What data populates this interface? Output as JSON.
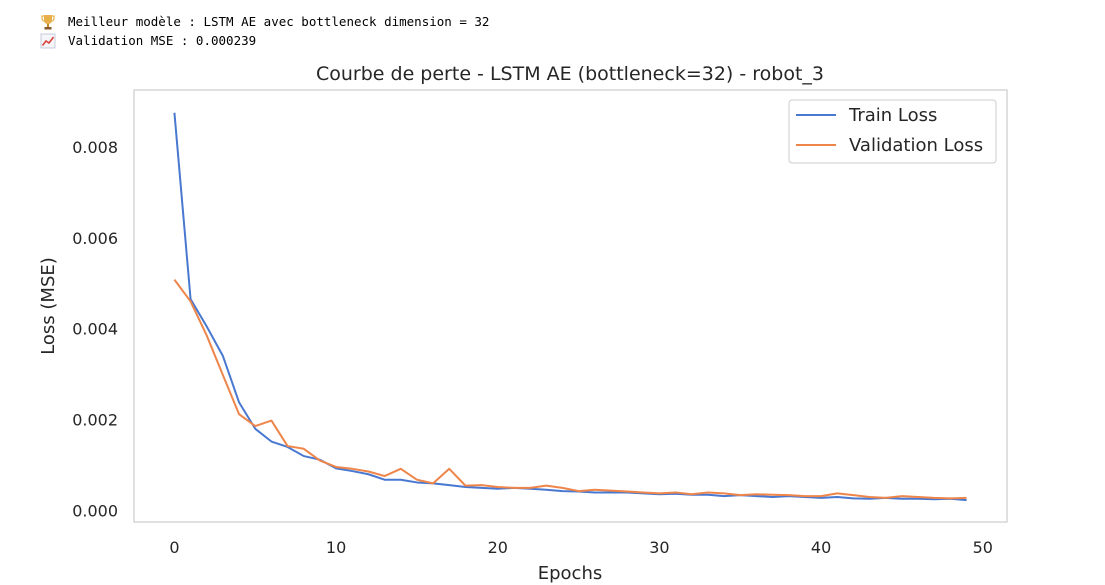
{
  "log": {
    "line1_icon": "trophy-icon",
    "line1_text": "Meilleur modèle : LSTM AE avec bottleneck dimension = 32",
    "line2_icon": "chart-increasing-icon",
    "line2_text": "Validation MSE : 0.000239"
  },
  "chart_data": {
    "type": "line",
    "title": "Courbe de perte - LSTM AE (bottleneck=32) - robot_3",
    "xlabel": "Epochs",
    "ylabel": "Loss (MSE)",
    "xlim": [
      -2.5,
      51.5
    ],
    "ylim": [
      -0.00025,
      0.00925
    ],
    "xticks": [
      0,
      10,
      20,
      30,
      40,
      50
    ],
    "xtick_labels": [
      "0",
      "10",
      "20",
      "30",
      "40",
      "50"
    ],
    "yticks": [
      0.0,
      0.002,
      0.004,
      0.006,
      0.008
    ],
    "ytick_labels": [
      "0.000",
      "0.002",
      "0.004",
      "0.006",
      "0.008"
    ],
    "grid": false,
    "legend_position": "top-right",
    "x": [
      0,
      1,
      2,
      3,
      4,
      5,
      6,
      7,
      8,
      9,
      10,
      11,
      12,
      13,
      14,
      15,
      16,
      17,
      18,
      19,
      20,
      21,
      22,
      23,
      24,
      25,
      26,
      27,
      28,
      29,
      30,
      31,
      32,
      33,
      34,
      35,
      36,
      37,
      38,
      39,
      40,
      41,
      42,
      43,
      44,
      45,
      46,
      47,
      48,
      49
    ],
    "series": [
      {
        "name": "Train Loss",
        "color": "#4878d0",
        "values": [
          0.00875,
          0.00465,
          0.00405,
          0.0034,
          0.00238,
          0.0018,
          0.00152,
          0.0014,
          0.0012,
          0.00112,
          0.00093,
          0.00087,
          0.0008,
          0.00068,
          0.00068,
          0.00062,
          0.0006,
          0.00056,
          0.00052,
          0.0005,
          0.00048,
          0.0005,
          0.00048,
          0.00046,
          0.00043,
          0.00042,
          0.0004,
          0.0004,
          0.0004,
          0.00038,
          0.00036,
          0.00037,
          0.00035,
          0.00035,
          0.00032,
          0.00034,
          0.00032,
          0.0003,
          0.00032,
          0.0003,
          0.00028,
          0.0003,
          0.00027,
          0.00026,
          0.00028,
          0.00026,
          0.00026,
          0.00025,
          0.00026,
          0.00023
        ]
      },
      {
        "name": "Validation Loss",
        "color": "#ee854a",
        "values": [
          0.00508,
          0.0046,
          0.00385,
          0.00298,
          0.00212,
          0.00186,
          0.00198,
          0.00142,
          0.00136,
          0.0011,
          0.00096,
          0.00092,
          0.00086,
          0.00076,
          0.00092,
          0.00068,
          0.0006,
          0.00092,
          0.00055,
          0.00056,
          0.00052,
          0.0005,
          0.0005,
          0.00055,
          0.0005,
          0.00043,
          0.00046,
          0.00044,
          0.00042,
          0.0004,
          0.00038,
          0.0004,
          0.00036,
          0.0004,
          0.00038,
          0.00034,
          0.00036,
          0.00035,
          0.00034,
          0.00032,
          0.00032,
          0.00038,
          0.00034,
          0.0003,
          0.00028,
          0.00032,
          0.0003,
          0.00028,
          0.00027,
          0.00028
        ]
      }
    ]
  }
}
